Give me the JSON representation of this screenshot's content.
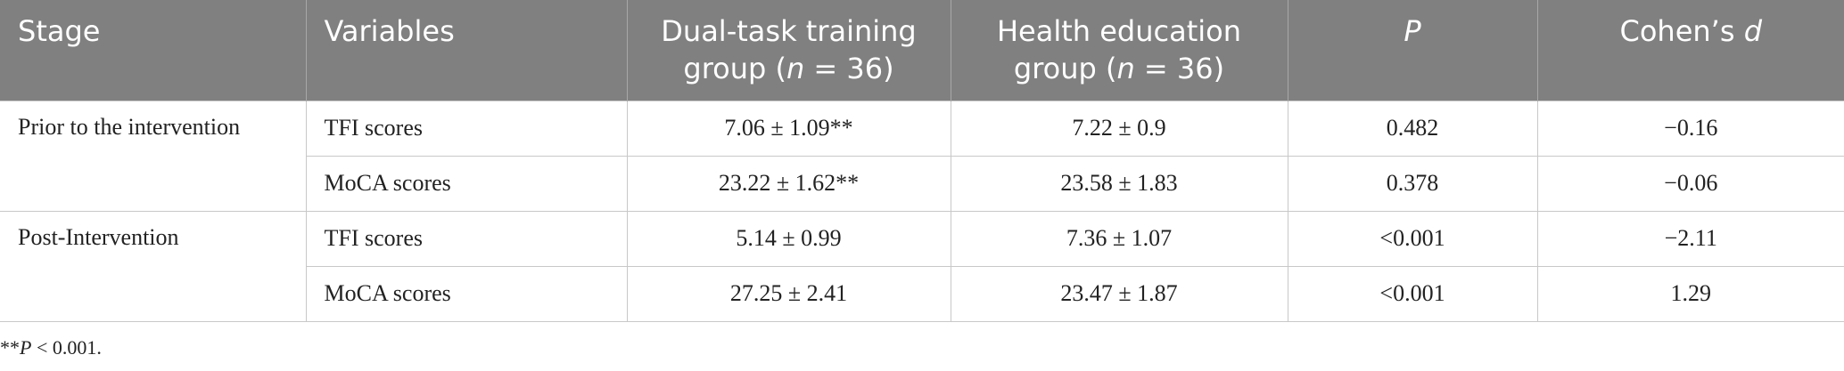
{
  "table": {
    "header": [
      [
        {
          "text": "Stage"
        }
      ],
      [
        {
          "text": "Variables"
        }
      ],
      [
        {
          "text": "Dual-task training group ("
        },
        {
          "text": "n",
          "italic": true
        },
        {
          "text": " = 36)"
        }
      ],
      [
        {
          "text": "Health education group ("
        },
        {
          "text": "n",
          "italic": true
        },
        {
          "text": " = 36)"
        }
      ],
      [
        {
          "text": "P",
          "italic": true
        }
      ],
      [
        {
          "text": "Cohen’s "
        },
        {
          "text": "d",
          "italic": true
        }
      ]
    ],
    "groups": [
      {
        "stage": "Prior to the intervention",
        "rows": [
          [
            "TFI scores",
            "7.06 ± 1.09**",
            "7.22 ± 0.9",
            "0.482",
            "−0.16"
          ],
          [
            "MoCA scores",
            "23.22 ± 1.62**",
            "23.58 ± 1.83",
            "0.378",
            "−0.06"
          ]
        ]
      },
      {
        "stage": "Post-Intervention",
        "rows": [
          [
            "TFI scores",
            "5.14 ± 0.99",
            "7.36 ± 1.07",
            "<0.001",
            "−2.11"
          ],
          [
            "MoCA scores",
            "27.25 ± 2.41",
            "23.47 ± 1.87",
            "<0.001",
            "1.29"
          ]
        ]
      }
    ]
  },
  "footnote": [
    {
      "text": "**"
    },
    {
      "text": "P",
      "italic": true
    },
    {
      "text": " < 0.001."
    }
  ]
}
